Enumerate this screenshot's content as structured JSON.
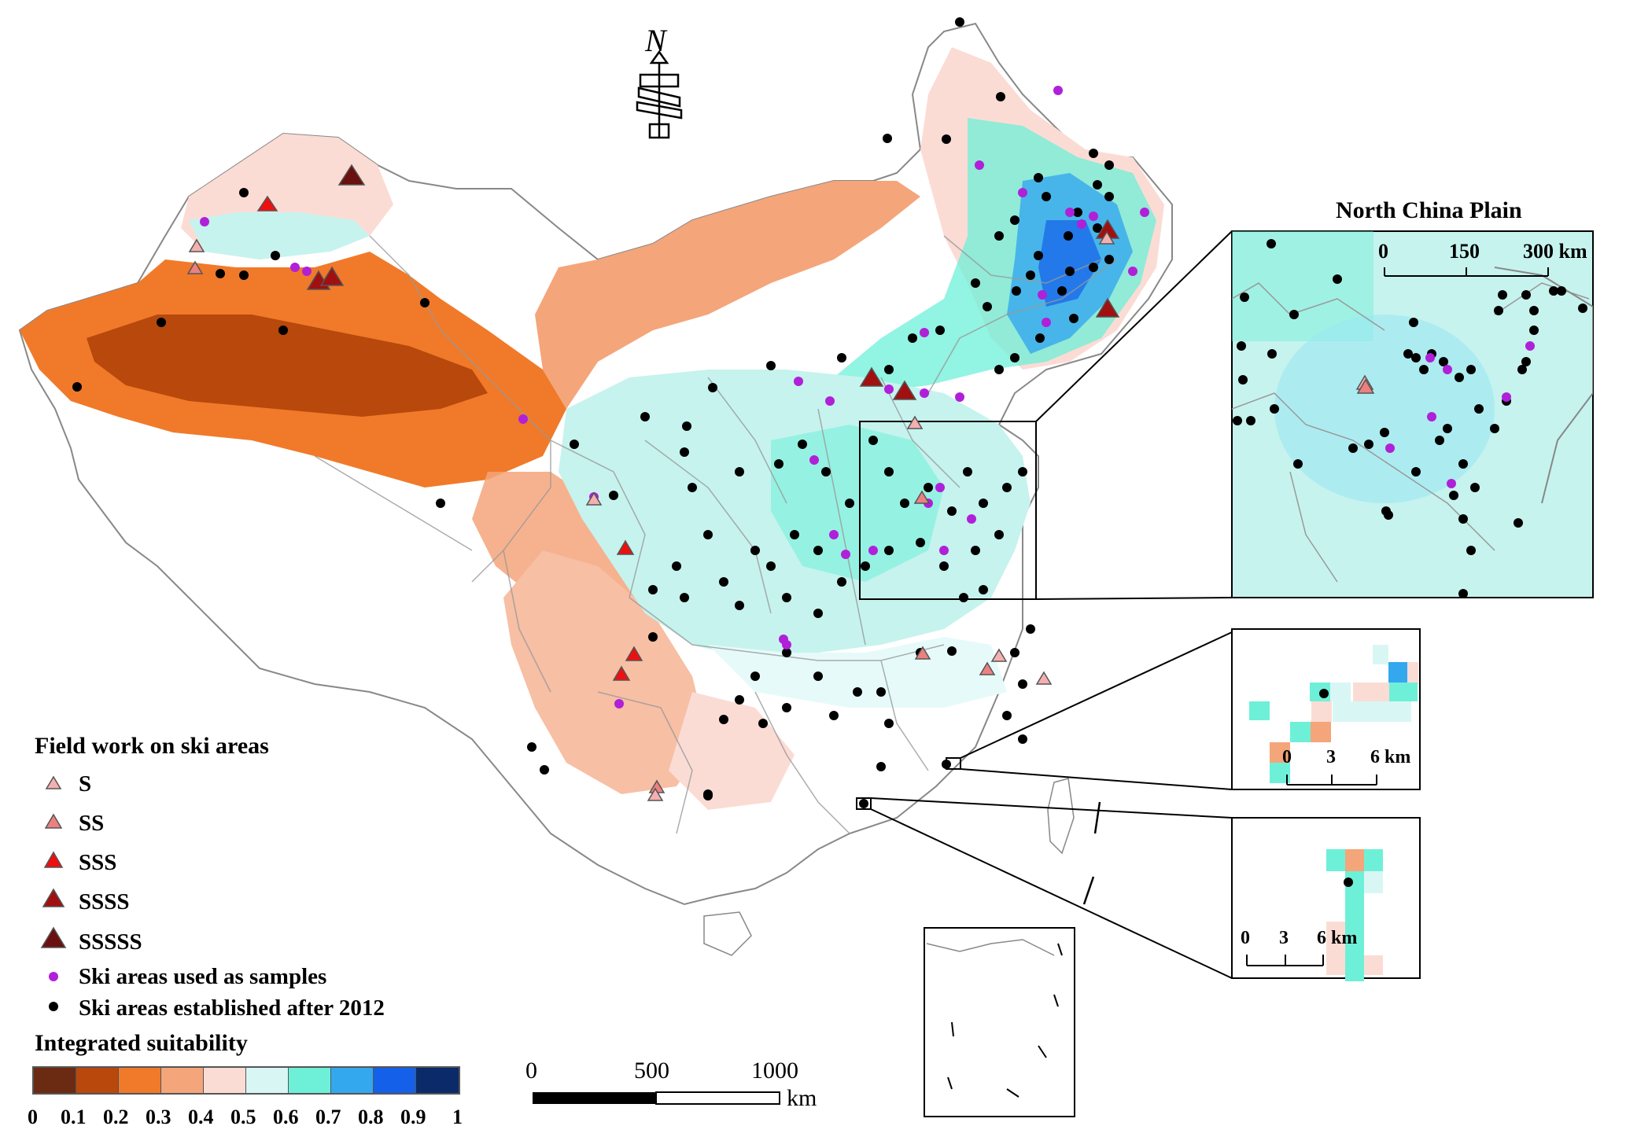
{
  "inset_main": {
    "title": "North China Plain",
    "scale_ticks": [
      "0",
      "150",
      "300 km"
    ]
  },
  "inset_small_1": {
    "scale_ticks": [
      "0",
      "3",
      "6 km"
    ]
  },
  "inset_small_2": {
    "scale_ticks": [
      "0",
      "3",
      "6 km"
    ]
  },
  "north_arrow": {
    "letter": "N"
  },
  "main_scale": {
    "ticks": [
      "0",
      "500",
      "1000"
    ],
    "unit": "km"
  },
  "legend": {
    "field_work_title": "Field work on ski areas",
    "field_work_items": [
      {
        "label": "S",
        "color": "#f4b0b0",
        "size_rank": 1
      },
      {
        "label": "SS",
        "color": "#ec8080",
        "size_rank": 2
      },
      {
        "label": "SSS",
        "color": "#ee1010",
        "size_rank": 3
      },
      {
        "label": "SSSS",
        "color": "#a01010",
        "size_rank": 4
      },
      {
        "label": "SSSSS",
        "color": "#6a1010",
        "size_rank": 5
      }
    ],
    "sample_label": "Ski areas used as samples",
    "sample_color": "#b020d8",
    "established_label": "Ski areas established after 2012",
    "established_color": "#000000",
    "suitability_title": "Integrated suitability",
    "suitability_colors": [
      "#6b2a12",
      "#b8480c",
      "#f07a2a",
      "#f4a57a",
      "#fbdcd4",
      "#d8f7f4",
      "#6ef0d8",
      "#34a8ee",
      "#1460e8",
      "#0a2a6a"
    ],
    "suitability_ticks": [
      "0",
      "0.1",
      "0.2",
      "0.3",
      "0.4",
      "0.5",
      "0.6",
      "0.7",
      "0.8",
      "0.9",
      "1"
    ]
  }
}
